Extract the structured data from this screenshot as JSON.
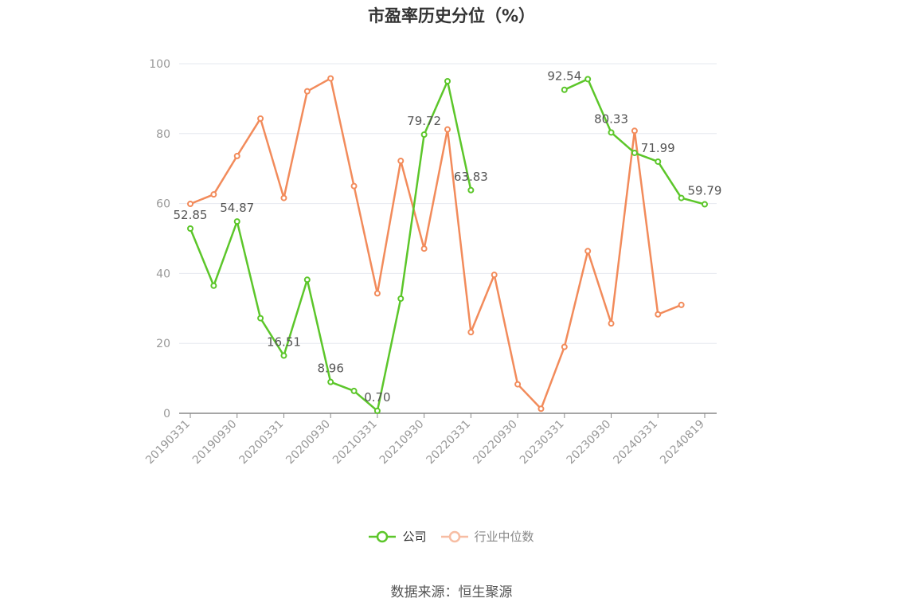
{
  "chart_data": {
    "type": "line",
    "title": "市盈率历史分位（%）",
    "x": [
      "20190331",
      "20190630",
      "20190930",
      "20191231",
      "20200331",
      "20200630",
      "20200930",
      "20201231",
      "20210331",
      "20210630",
      "20210930",
      "20211231",
      "20220331",
      "20220630",
      "20220930",
      "20221231",
      "20230331",
      "20230630",
      "20230930",
      "20231231",
      "20240331",
      "20240630",
      "20240819"
    ],
    "x_tick_labels": [
      "20190331",
      "20190930",
      "20200331",
      "20200930",
      "20210331",
      "20210930",
      "20220331",
      "20220930",
      "20230331",
      "20230930",
      "20240331",
      "20240819"
    ],
    "ylim": [
      0,
      100
    ],
    "y_ticks": [
      0,
      20,
      40,
      60,
      80,
      100
    ],
    "grid": true,
    "legend_position": "bottom",
    "series": [
      {
        "name": "公司",
        "color": "#5cc62a",
        "values": [
          52.85,
          36.5,
          54.87,
          27.2,
          16.51,
          38.2,
          8.96,
          6.4,
          0.7,
          32.8,
          79.72,
          95.0,
          63.83,
          null,
          null,
          null,
          92.54,
          95.6,
          80.33,
          74.5,
          71.99,
          61.6,
          59.79
        ],
        "labels": [
          52.85,
          null,
          54.87,
          null,
          16.51,
          null,
          8.96,
          null,
          0.7,
          null,
          79.72,
          null,
          63.83,
          null,
          null,
          null,
          92.54,
          null,
          80.33,
          null,
          71.99,
          null,
          59.79
        ]
      },
      {
        "name": "行业中位数",
        "color": "#f28b5b",
        "values": [
          59.9,
          62.6,
          73.6,
          84.3,
          61.6,
          92.1,
          95.8,
          65.0,
          34.3,
          72.2,
          47.1,
          81.2,
          23.2,
          39.6,
          8.3,
          1.3,
          19.0,
          46.4,
          25.7,
          80.8,
          28.3,
          31.0,
          null
        ]
      }
    ]
  },
  "legend": [
    {
      "label": "公司",
      "color": "#5cc62a",
      "active": true
    },
    {
      "label": "行业中位数",
      "color": "#f7bda3",
      "active": false
    }
  ],
  "source_note": "数据来源：恒生聚源"
}
